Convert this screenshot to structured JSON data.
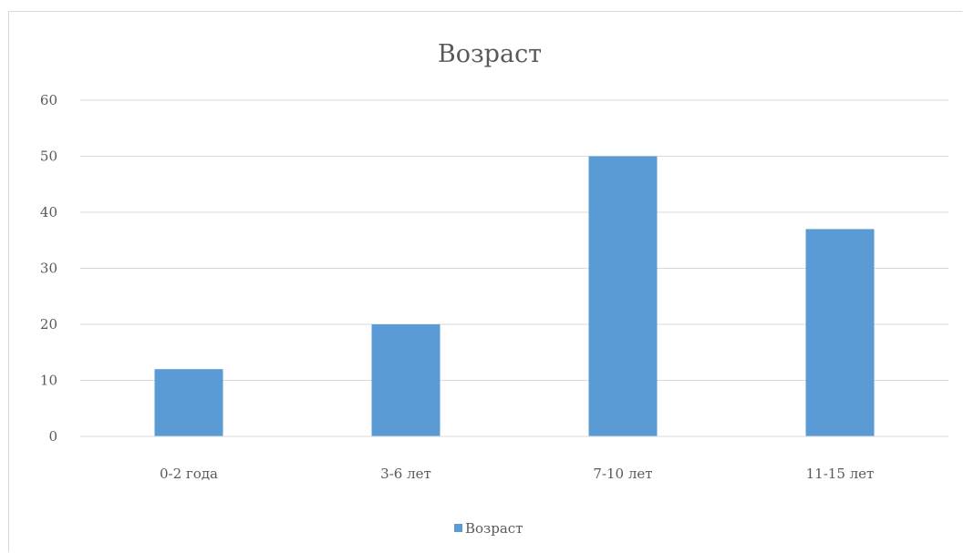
{
  "chart_data": {
    "type": "bar",
    "title": "Возраст",
    "categories": [
      "0-2 года",
      "3-6 лет",
      "7-10 лет",
      "11-15 лет"
    ],
    "series": [
      {
        "name": "Возраст",
        "values": [
          12,
          20,
          50,
          37
        ],
        "color": "#5b9bd5"
      }
    ],
    "ylim": [
      0,
      60
    ],
    "yticks": [
      0,
      10,
      20,
      30,
      40,
      50,
      60
    ],
    "grid": true,
    "legend_position": "bottom"
  }
}
